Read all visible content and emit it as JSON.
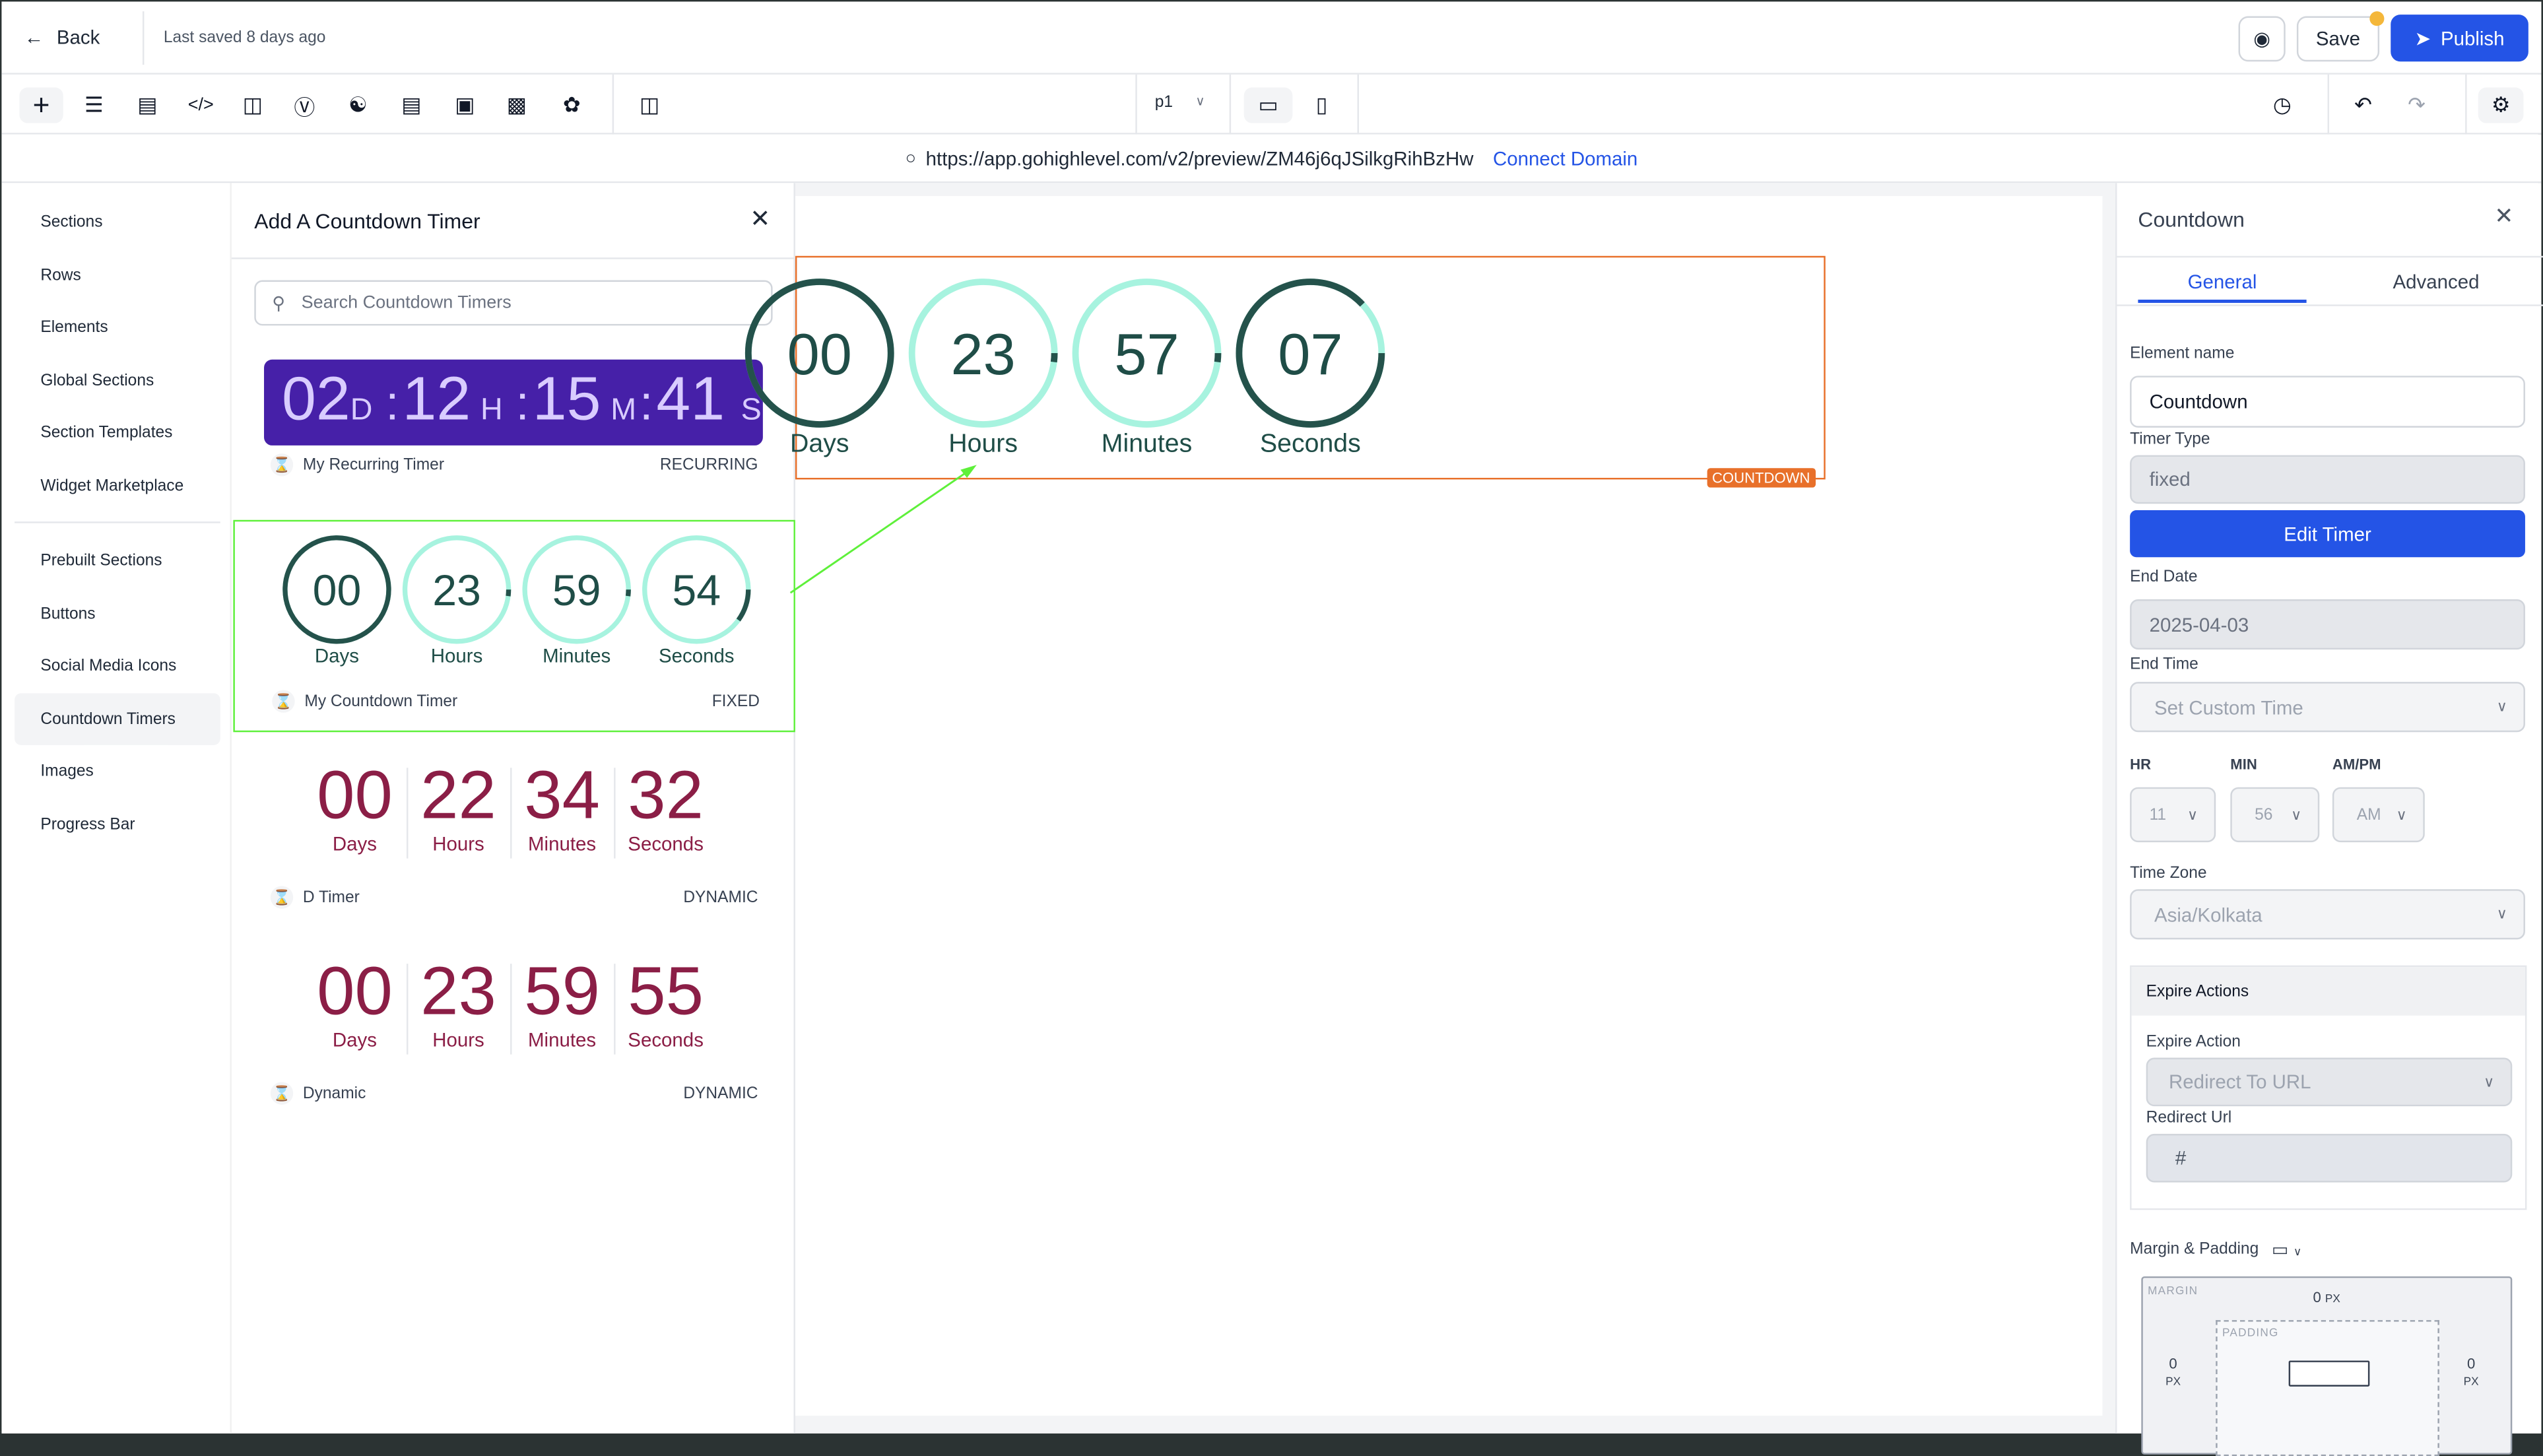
{
  "topbar": {
    "back_label": "Back",
    "last_saved": "Last saved 8 days ago",
    "save_label": "Save",
    "publish_label": "Publish"
  },
  "toolbar": {
    "page_select": "p1",
    "icons": [
      "add-icon",
      "layers-icon",
      "pages-icon",
      "code-icon",
      "paint-icon",
      "text-icon",
      "shapes-icon",
      "layout-icon",
      "search-doc-icon",
      "terminal-icon",
      "palette-icon",
      "columns-icon"
    ]
  },
  "urlbar": {
    "url": "https://app.gohighlevel.com/v2/preview/ZM46j6qJSilkgRihBzHw",
    "connect_label": "Connect Domain"
  },
  "nav": {
    "items": [
      "Sections",
      "Rows",
      "Elements",
      "Global Sections",
      "Section Templates",
      "Widget Marketplace",
      "Prebuilt Sections",
      "Buttons",
      "Social Media Icons",
      "Countdown Timers",
      "Images",
      "Progress Bar"
    ],
    "active": "Countdown Timers"
  },
  "panel": {
    "title": "Add A Countdown Timer",
    "search_placeholder": "Search Countdown Timers",
    "recurring": {
      "d": "02",
      "d_unit": "D",
      "h": "12",
      "h_unit": "H",
      "m": "15",
      "m_unit": "M",
      "s": "41",
      "s_unit": "S",
      "sep": ":",
      "name": "My Recurring Timer",
      "type": "RECURRING",
      "bg": "#4620a8"
    },
    "fixed": {
      "units": [
        {
          "value": "00",
          "label": "Days",
          "progress": 1.0
        },
        {
          "value": "23",
          "label": "Hours",
          "progress": 0.02
        },
        {
          "value": "59",
          "label": "Minutes",
          "progress": 0.02
        },
        {
          "value": "54",
          "label": "Seconds",
          "progress": 0.1
        }
      ],
      "name": "My Countdown Timer",
      "type": "FIXED"
    },
    "dtimer": {
      "units": [
        {
          "value": "00",
          "label": "Days"
        },
        {
          "value": "22",
          "label": "Hours"
        },
        {
          "value": "34",
          "label": "Minutes"
        },
        {
          "value": "32",
          "label": "Seconds"
        }
      ],
      "name": "D Timer",
      "type": "DYNAMIC"
    },
    "dynamic": {
      "units": [
        {
          "value": "00",
          "label": "Days"
        },
        {
          "value": "23",
          "label": "Hours"
        },
        {
          "value": "59",
          "label": "Minutes"
        },
        {
          "value": "55",
          "label": "Seconds"
        }
      ],
      "name": "Dynamic",
      "type": "DYNAMIC"
    }
  },
  "canvas": {
    "units": [
      {
        "value": "00",
        "label": "Days",
        "progress": 1.0
      },
      {
        "value": "23",
        "label": "Hours",
        "progress": 0.02
      },
      {
        "value": "57",
        "label": "Minutes",
        "progress": 0.02
      },
      {
        "value": "07",
        "label": "Seconds",
        "progress": 0.88
      }
    ],
    "badge": "COUNTDOWN"
  },
  "right": {
    "title": "Countdown",
    "tab_general": "General",
    "tab_advanced": "Advanced",
    "element_name_label": "Element name",
    "element_name": "Countdown",
    "timer_type_label": "Timer Type",
    "timer_type": "fixed",
    "edit_timer": "Edit Timer",
    "end_date_label": "End Date",
    "end_date": "2025-04-03",
    "end_time_label": "End Time",
    "end_time": "Set Custom Time",
    "hr_label": "HR",
    "hr": "11",
    "min_label": "MIN",
    "min": "56",
    "ampm_label": "AM/PM",
    "ampm": "AM",
    "tz_label": "Time Zone",
    "tz": "Asia/Kolkata",
    "expire_title": "Expire Actions",
    "expire_action_label": "Expire Action",
    "expire_action": "Redirect To URL",
    "redirect_label": "Redirect Url",
    "redirect": "#",
    "mp_label": "Margin & Padding",
    "margin": "MARGIN",
    "padding": "PADDING",
    "m_top": "0",
    "m_left": "0",
    "m_right": "0",
    "px": "PX"
  },
  "colors": {
    "accent": "#2454e6",
    "selection": "#e8702a",
    "ring_dark": "#24524b",
    "ring_light": "#a7f3df",
    "maroon": "#8b1e46",
    "annotation": "#5ef03a"
  }
}
